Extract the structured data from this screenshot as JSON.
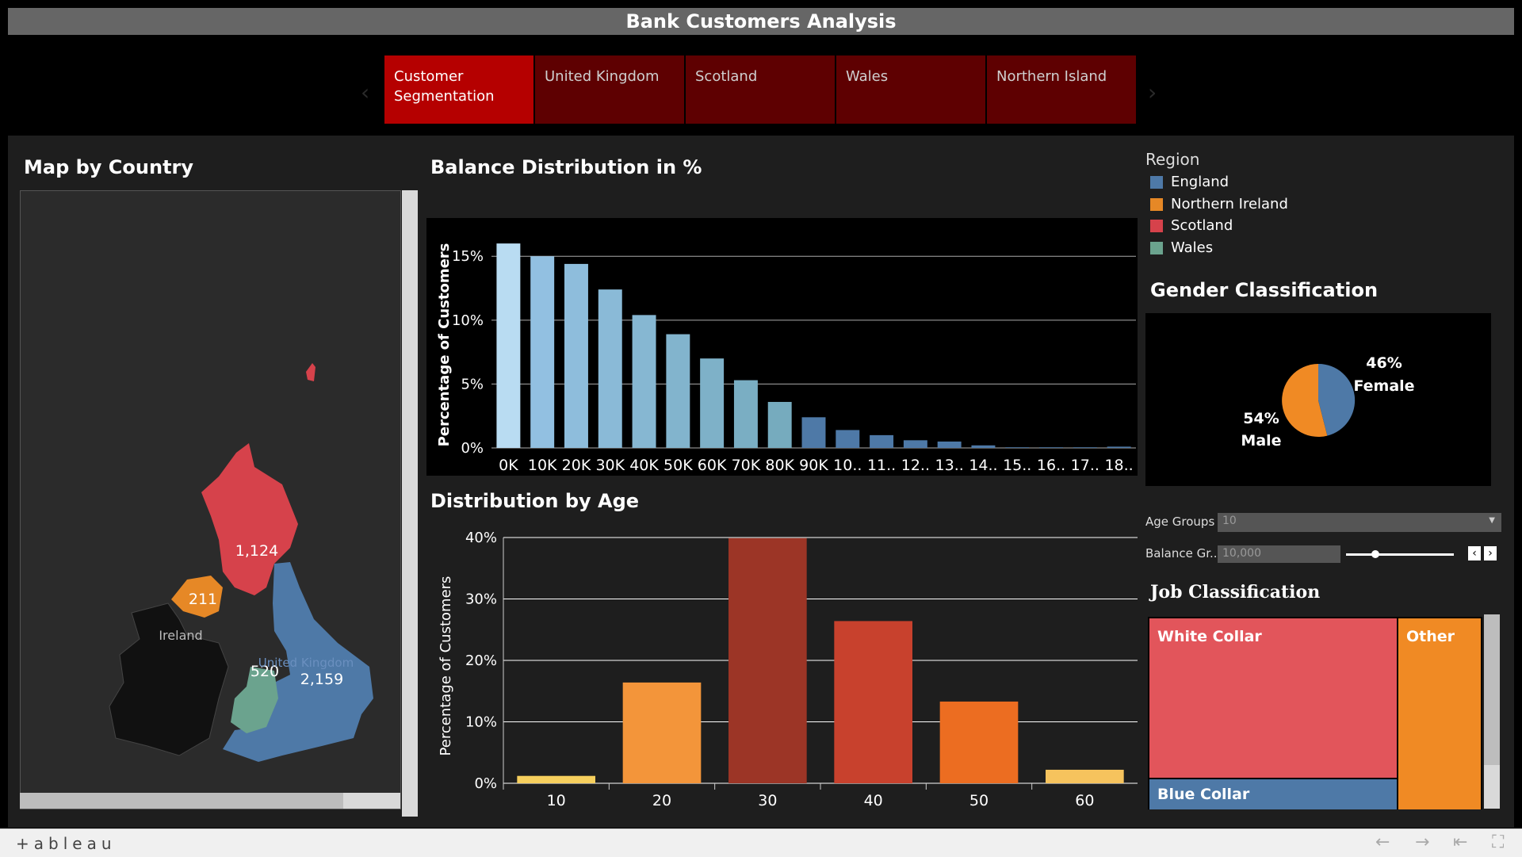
{
  "title": "Bank Customers Analysis",
  "tabs": [
    {
      "label": "Customer Segmentation",
      "active": true
    },
    {
      "label": "United Kingdom",
      "active": false
    },
    {
      "label": "Scotland",
      "active": false
    },
    {
      "label": "Wales",
      "active": false
    },
    {
      "label": "Northern Island",
      "active": false
    }
  ],
  "map": {
    "title": "Map by Country",
    "labels": {
      "scotland": "1,124",
      "northern_ireland": "211",
      "wales": "520",
      "england": "2,159",
      "ireland": "Ireland",
      "uk": "United Kingdom"
    }
  },
  "legend": {
    "title": "Region",
    "items": [
      {
        "label": "England",
        "color": "#4e79a7"
      },
      {
        "label": "Northern Ireland",
        "color": "#e68826"
      },
      {
        "label": "Scotland",
        "color": "#d6424b"
      },
      {
        "label": "Wales",
        "color": "#6ba38e"
      }
    ]
  },
  "gender": {
    "title": "Gender Classification",
    "female_pct": "46%",
    "female_label": "Female",
    "male_pct": "54%",
    "male_label": "Male"
  },
  "controls": {
    "age_groups_label": "Age Groups",
    "age_groups_value": "10",
    "balance_label": "Balance Gr...",
    "balance_value": "10,000"
  },
  "jobs": {
    "title": "Job Classification",
    "items": [
      {
        "label": "White Collar",
        "value": 0.66,
        "color": "#e2555b"
      },
      {
        "label": "Blue Collar",
        "value": 0.09,
        "color": "#4e79a7"
      },
      {
        "label": "Other",
        "value": 0.25,
        "color": "#f08a24"
      }
    ]
  },
  "footer": {
    "logo": "+ableau"
  },
  "chart_data": [
    {
      "type": "bar",
      "title": "Balance Distribution in %",
      "ylabel": "Percentage of Customers",
      "xlabel": "",
      "ylim": [
        0,
        17
      ],
      "yticks": [
        "0%",
        "5%",
        "10%",
        "15%"
      ],
      "categories": [
        "0K",
        "10K",
        "20K",
        "30K",
        "40K",
        "50K",
        "60K",
        "70K",
        "80K",
        "90K",
        "10..",
        "11..",
        "12..",
        "13..",
        "14..",
        "15..",
        "16..",
        "17..",
        "18.."
      ],
      "values": [
        16.0,
        15.0,
        14.4,
        12.4,
        10.4,
        8.9,
        7.0,
        5.3,
        3.6,
        2.4,
        1.4,
        1.0,
        0.6,
        0.5,
        0.2,
        0.05,
        0.05,
        0.05,
        0.1
      ]
    },
    {
      "type": "bar",
      "title": "Distribution by Age",
      "ylabel": "Percentage of Customers",
      "xlabel": "",
      "ylim": [
        0,
        40
      ],
      "yticks": [
        "0%",
        "10%",
        "20%",
        "30%",
        "40%"
      ],
      "categories": [
        "10",
        "20",
        "30",
        "40",
        "50",
        "60"
      ],
      "values": [
        1.2,
        16.4,
        39.9,
        26.4,
        13.3,
        2.2
      ],
      "colors": [
        "#f6cf5d",
        "#f3953a",
        "#9c3526",
        "#c8412d",
        "#ec6d21",
        "#f6c35d"
      ]
    }
  ]
}
